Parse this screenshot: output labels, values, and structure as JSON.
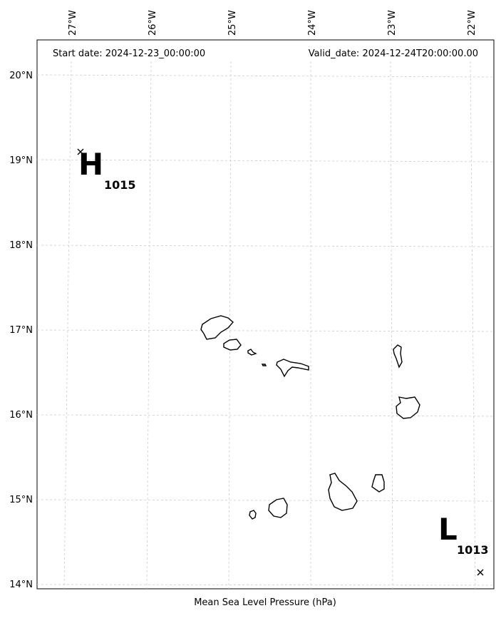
{
  "header": {
    "start_date": "Start date: 2024-12-23_00:00:00",
    "valid_date": "Valid_date: 2024-12-24T20:00:00.00"
  },
  "lon_ticks": [
    "27°W",
    "26°W",
    "25°W",
    "24°W",
    "23°W",
    "22°W"
  ],
  "lat_ticks": [
    "20°N",
    "19°N",
    "18°N",
    "17°N",
    "16°N",
    "15°N",
    "14°N"
  ],
  "pressure_centers": [
    {
      "type": "H",
      "value": "1015",
      "lon": -26.9,
      "lat": 19.1
    },
    {
      "type": "L",
      "value": "1013",
      "lon": -21.95,
      "lat": 14.15
    }
  ],
  "caption": "Mean Sea Level Pressure (hPa)"
}
